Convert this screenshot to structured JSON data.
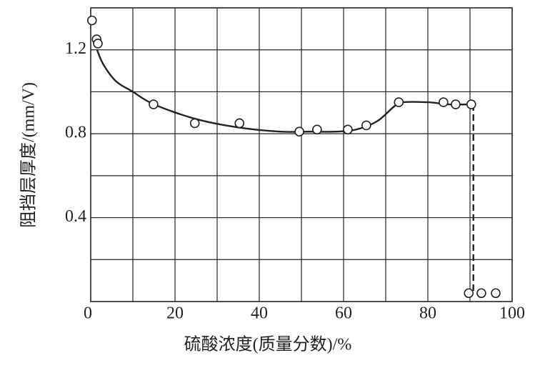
{
  "chart_data": {
    "type": "scatter",
    "x_label": "硫酸浓度(质量分数)/%",
    "y_label": "阻挡层厚度/(mm/V)",
    "xlim": [
      0,
      100
    ],
    "ylim": [
      0,
      1.4
    ],
    "xticks": [
      0,
      20,
      40,
      60,
      80,
      100
    ],
    "yticks": [
      0.4,
      0.8,
      1.2
    ],
    "xgrid": [
      10,
      20,
      30,
      40,
      50,
      60,
      70,
      80,
      90
    ],
    "ygrid": [
      0.2,
      0.4,
      0.6,
      0.8,
      1.0,
      1.2
    ],
    "grid": true,
    "x": [
      0.3,
      1.4,
      1.7,
      14.9,
      24.7,
      35.3,
      49.5,
      53.7,
      61.0,
      65.4,
      73.1,
      83.7,
      86.6,
      90.3,
      89.7,
      92.7,
      96.1
    ],
    "y": [
      1.34,
      1.25,
      1.23,
      0.94,
      0.85,
      0.85,
      0.81,
      0.82,
      0.82,
      0.84,
      0.95,
      0.95,
      0.94,
      0.94,
      0.04,
      0.04,
      0.04
    ],
    "curve": {
      "x": [
        1.5,
        3,
        6,
        10,
        15,
        25,
        35,
        45,
        52,
        58,
        63,
        68,
        72,
        74,
        80,
        85,
        90.8
      ],
      "y": [
        1.2,
        1.13,
        1.05,
        1.0,
        0.94,
        0.87,
        0.83,
        0.81,
        0.81,
        0.81,
        0.82,
        0.86,
        0.93,
        0.95,
        0.95,
        0.94,
        0.94
      ]
    },
    "dashed": {
      "x": [
        90.8,
        90.8
      ],
      "y": [
        0.94,
        0.04
      ]
    }
  }
}
